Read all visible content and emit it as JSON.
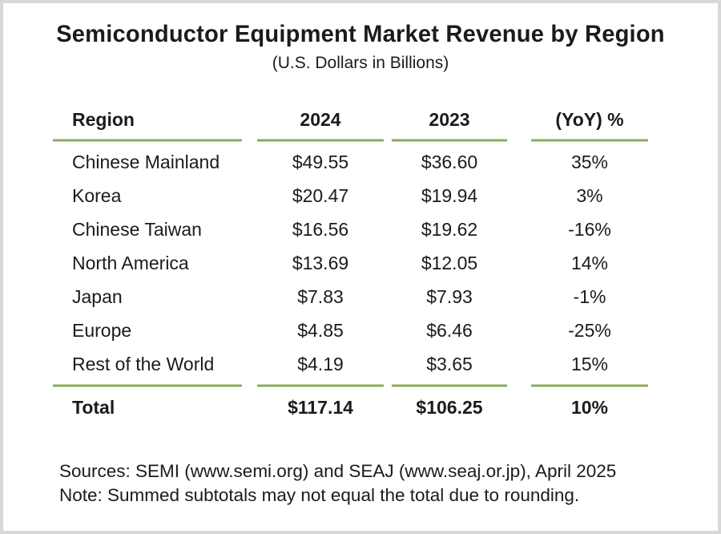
{
  "title": "Semiconductor Equipment Market Revenue by Region",
  "subtitle": "(U.S. Dollars in Billions)",
  "table": {
    "columns": {
      "region": "Region",
      "y2024": "2024",
      "y2023": "2023",
      "yoy": "(YoY) %"
    },
    "rows": [
      {
        "region": "Chinese Mainland",
        "y2024": "$49.55",
        "y2023": "$36.60",
        "yoy": "35%"
      },
      {
        "region": "Korea",
        "y2024": "$20.47",
        "y2023": "$19.94",
        "yoy": "3%"
      },
      {
        "region": "Chinese Taiwan",
        "y2024": "$16.56",
        "y2023": "$19.62",
        "yoy": "-16%"
      },
      {
        "region": "North America",
        "y2024": "$13.69",
        "y2023": "$12.05",
        "yoy": "14%"
      },
      {
        "region": "Japan",
        "y2024": "$7.83",
        "y2023": "$7.93",
        "yoy": "-1%"
      },
      {
        "region": "Europe",
        "y2024": "$4.85",
        "y2023": "$6.46",
        "yoy": "-25%"
      },
      {
        "region": "Rest of the World",
        "y2024": "$4.19",
        "y2023": "$3.65",
        "yoy": "15%"
      }
    ],
    "total": {
      "region": "Total",
      "y2024": "$117.14",
      "y2023": "$106.25",
      "yoy": "10%"
    }
  },
  "footer": {
    "sources": "Sources: SEMI (www.semi.org) and SEAJ (www.seaj.or.jp), April 2025",
    "note": "Note: Summed subtotals may not equal the total due to rounding."
  },
  "colors": {
    "accent_green": "#89a95e",
    "frame_border": "#d8d8d8",
    "text": "#1b1b1b"
  },
  "chart_data": {
    "type": "table",
    "title": "Semiconductor Equipment Market Revenue by Region",
    "subtitle": "(U.S. Dollars in Billions)",
    "units": "USD billions",
    "columns": [
      "Region",
      "2024",
      "2023",
      "(YoY) %"
    ],
    "rows": [
      [
        "Chinese Mainland",
        49.55,
        36.6,
        35
      ],
      [
        "Korea",
        20.47,
        19.94,
        3
      ],
      [
        "Chinese Taiwan",
        16.56,
        19.62,
        -16
      ],
      [
        "North America",
        13.69,
        12.05,
        14
      ],
      [
        "Japan",
        7.83,
        7.93,
        -1
      ],
      [
        "Europe",
        4.85,
        6.46,
        -25
      ],
      [
        "Rest of the World",
        4.19,
        3.65,
        15
      ]
    ],
    "total_row": [
      "Total",
      117.14,
      106.25,
      10
    ],
    "yoy_unit": "percent",
    "sources": "SEMI (www.semi.org) and SEAJ (www.seaj.or.jp), April 2025",
    "note": "Summed subtotals may not equal the total due to rounding."
  }
}
